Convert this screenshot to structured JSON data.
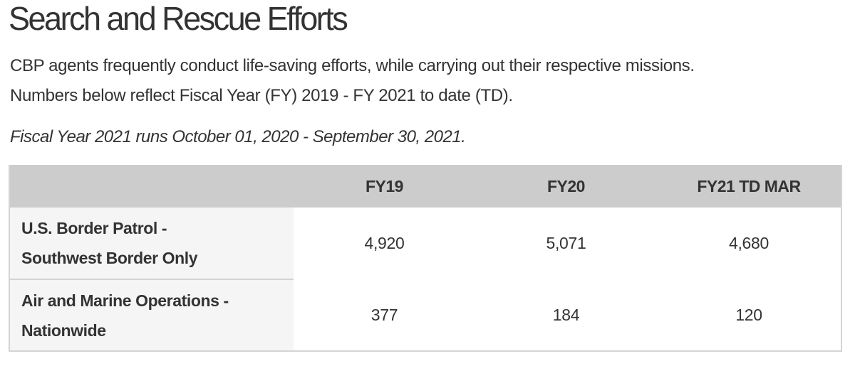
{
  "page": {
    "title": "Search and Rescue Efforts",
    "intro_lines": [
      "CBP agents frequently conduct life-saving efforts, while carrying out their respective missions.",
      "Numbers below reflect Fiscal Year (FY) 2019 - FY 2021 to date (TD)."
    ],
    "note": "Fiscal Year 2021 runs October 01, 2020 - September 30, 2021."
  },
  "table": {
    "columns": [
      "",
      "FY19",
      "FY20",
      "FY21 TD MAR"
    ],
    "rows": [
      {
        "label_lines": [
          "U.S. Border Patrol -",
          "Southwest Border Only"
        ],
        "values": [
          "4,920",
          "5,071",
          "4,680"
        ]
      },
      {
        "label_lines": [
          "Air and Marine Operations -",
          "Nationwide"
        ],
        "values": [
          "377",
          "184",
          "120"
        ]
      }
    ]
  },
  "colors": {
    "text": "#333333",
    "header_bg": "#cccccc",
    "label_col_bg": "#f5f5f5",
    "border": "#d4d4d4"
  }
}
